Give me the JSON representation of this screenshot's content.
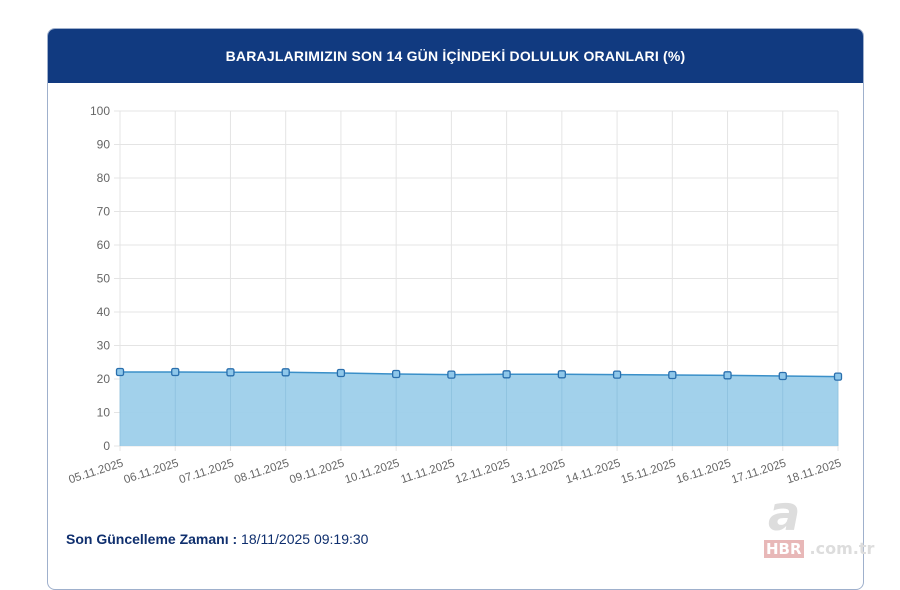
{
  "header": {
    "title": "BARAJLARIMIZIN SON 14 GÜN İÇİNDEKİ DOLULUK ORANLARI (%)"
  },
  "footer": {
    "label": "Son Güncelleme Zamanı :",
    "value": "18/11/2025 09:19:30"
  },
  "watermark": {
    "logo": "a",
    "brand": "HBR",
    "domain": ".com.tr"
  },
  "chart_data": {
    "type": "area",
    "title": "BARAJLARIMIZIN SON 14 GÜN İÇİNDEKİ DOLULUK ORANLARI (%)",
    "categories": [
      "05.11.2025",
      "06.11.2025",
      "07.11.2025",
      "08.11.2025",
      "09.11.2025",
      "10.11.2025",
      "11.11.2025",
      "12.11.2025",
      "13.11.2025",
      "14.11.2025",
      "15.11.2025",
      "16.11.2025",
      "17.11.2025",
      "18.11.2025"
    ],
    "values": [
      22.1,
      22.1,
      22.0,
      22.0,
      21.8,
      21.5,
      21.3,
      21.4,
      21.4,
      21.3,
      21.2,
      21.1,
      20.9,
      20.7
    ],
    "ylim": [
      0,
      100
    ],
    "yticks": [
      0,
      10,
      20,
      30,
      40,
      50,
      60,
      70,
      80,
      90,
      100
    ],
    "grid": true,
    "colors": {
      "fill": "#9dcfea",
      "line": "#3a8fc8",
      "marker": "#2a6fad",
      "header": "#113a80"
    }
  }
}
